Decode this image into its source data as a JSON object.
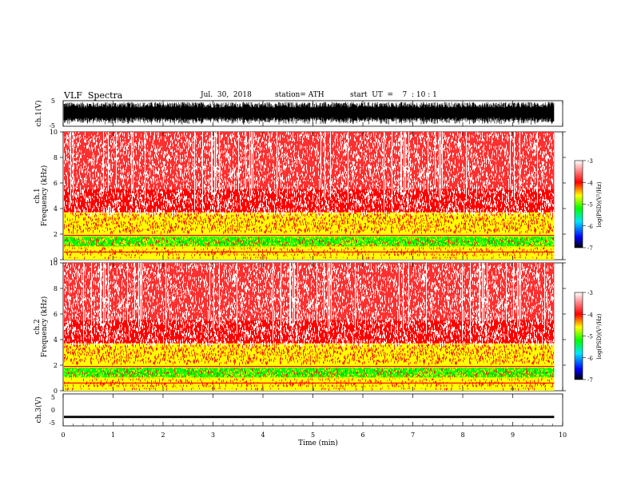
{
  "header": {
    "title": "VLF  Spectra",
    "date": "Jul.  30,  2018",
    "station": "station= ATH",
    "start_ut": "start  UT  =    7  : 10 : 1"
  },
  "colors": {
    "scale": [
      "#000000",
      "#0000ff",
      "#00e5ff",
      "#00ff00",
      "#ffff00",
      "#ff0000",
      "#ffffff"
    ],
    "trace": "#000000"
  },
  "chart_data": [
    {
      "type": "line",
      "name": "ch1-waveform",
      "ylabel": "ch.1(V)",
      "ylim": [
        -5,
        5
      ],
      "yticks": [
        "5",
        "-5"
      ],
      "xlim": [
        0,
        10
      ],
      "amplitude_fraction": 0.9,
      "noise": "broadband",
      "data_end_min": 9.83
    },
    {
      "type": "heatmap",
      "name": "ch1-spectrogram",
      "ylabel": "Frequency  (kHz)",
      "ylabel2": "ch.1",
      "ylim": [
        0,
        10
      ],
      "yticks": [
        "0",
        "2",
        "4",
        "6",
        "8",
        "10"
      ],
      "xlim": [
        0,
        10
      ],
      "data_end_min": 9.83,
      "freq_bands": [
        {
          "from": 0,
          "to": 0.3,
          "level": -4.5
        },
        {
          "from": 0.3,
          "to": 1.0,
          "level": -4.4
        },
        {
          "from": 1.0,
          "to": 1.8,
          "level": -4.9
        },
        {
          "from": 1.8,
          "to": 2.2,
          "level": -4.1
        },
        {
          "from": 2.2,
          "to": 3.7,
          "level": -4.4
        },
        {
          "from": 3.7,
          "to": 5.5,
          "level": -3.8
        },
        {
          "from": 5.5,
          "to": 10,
          "level": -3.5
        }
      ],
      "colorbar": {
        "label": "log(PSD)(V²/Hz)",
        "range": [
          -7,
          -3
        ],
        "ticks": [
          "-3",
          "-4",
          "-5",
          "-6",
          "-7"
        ]
      }
    },
    {
      "type": "heatmap",
      "name": "ch2-spectrogram",
      "ylabel": "Frequency  (kHz)",
      "ylabel2": "ch.2",
      "ylim": [
        0,
        10
      ],
      "yticks": [
        "0",
        "2",
        "4",
        "6",
        "8",
        "10"
      ],
      "xlim": [
        0,
        10
      ],
      "data_end_min": 9.83,
      "freq_bands": [
        {
          "from": 0,
          "to": 0.3,
          "level": -4.5
        },
        {
          "from": 0.3,
          "to": 1.0,
          "level": -4.4
        },
        {
          "from": 1.0,
          "to": 1.8,
          "level": -4.9
        },
        {
          "from": 1.8,
          "to": 2.2,
          "level": -4.1
        },
        {
          "from": 2.2,
          "to": 3.7,
          "level": -4.5
        },
        {
          "from": 3.7,
          "to": 5.5,
          "level": -3.9
        },
        {
          "from": 5.5,
          "to": 10,
          "level": -3.5
        }
      ],
      "colorbar": {
        "label": "log(PSD)(V²/Hz)",
        "range": [
          -7,
          -3
        ],
        "ticks": [
          "-3",
          "-4",
          "-5",
          "-6",
          "-7"
        ]
      }
    },
    {
      "type": "line",
      "name": "ch3-waveform",
      "ylabel": "ch.3(V)",
      "ylim": [
        -5,
        5
      ],
      "yticks": [
        "5",
        "0",
        "-5"
      ],
      "xlim": [
        0,
        10
      ],
      "baseline": -2.2,
      "amplitude_fraction": 0.05,
      "data_end_min": 9.83
    }
  ],
  "xaxis": {
    "label": "Time  (min)",
    "ticks": [
      "0",
      "1",
      "2",
      "3",
      "4",
      "5",
      "6",
      "7",
      "8",
      "9",
      "10"
    ]
  }
}
